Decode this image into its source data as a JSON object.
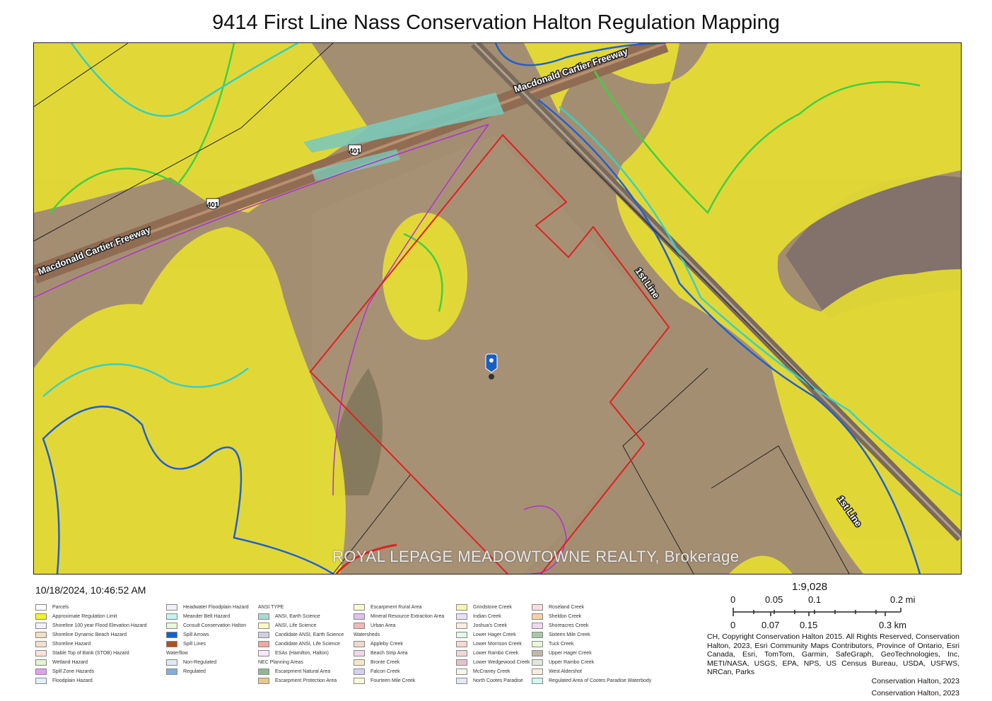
{
  "title": "9414 First Line Nass Conservation Halton Regulation Mapping",
  "timestamp": "10/18/2024, 10:46:52 AM",
  "map": {
    "road_labels": [
      "Macdonald Cartier Freeway",
      "Macdonald Cartier Freeway",
      "1st Line",
      "1st Line"
    ],
    "highway_shields": [
      "401",
      "401"
    ],
    "marker_icon": "map-pin-icon",
    "colors": {
      "regulation_limit": "#f0e82a",
      "parcel_boundary": "#e02020",
      "wetland": "#40d040",
      "floodplain": "#2060d0",
      "meander": "#30e0d0",
      "spill_zone": "#b030d0",
      "highway": "#8a6a50",
      "ansi_earth": "#7cc8b8"
    }
  },
  "legend": {
    "col1": [
      {
        "label": "Parcels",
        "color": "#ffffff"
      },
      {
        "label": "Approximate Regulation Limit",
        "color": "#f5f03a"
      },
      {
        "label": "Shoreline 100 year Flood Elevation Hazard",
        "color": "#f4f4ff"
      },
      {
        "label": "Shoreline Dynamic Beach Hazard",
        "color": "#f0e0c0"
      },
      {
        "label": "Shoreline Hazard",
        "color": "#f0e0d0"
      },
      {
        "label": "Stable Top of Bank (STOB) Hazard",
        "color": "#fde0e0"
      },
      {
        "label": "Wetland Hazard",
        "color": "#e0f5d0"
      },
      {
        "label": "Spill Zone Hazards",
        "color": "#e0a0f0"
      },
      {
        "label": "Floodplain Hazard",
        "color": "#e0f0ff"
      }
    ],
    "col2": [
      {
        "label": "Headwater Floodplain Hazard",
        "color": "#f0f0f8"
      },
      {
        "label": "Meander Belt Hazard",
        "color": "#c0f5f0"
      },
      {
        "label": "Consult Conservation Halton",
        "color": "#e8f8d8"
      },
      {
        "label": "Spill Arrows",
        "color": "#1060d0"
      },
      {
        "label": "Spill Lines",
        "color": "#b05020"
      }
    ],
    "waterflow_heading": "Waterflow",
    "waterflow": [
      {
        "label": "Non-Regulated",
        "color": "#e0e8f0"
      },
      {
        "label": "Regulated",
        "color": "#80b0e0"
      }
    ],
    "ansi_heading": "ANSI TYPE",
    "ansi": [
      {
        "label": "ANSI, Earth Science",
        "color": "#a8dcd0"
      },
      {
        "label": "ANSI, Life Science",
        "color": "#fafac0"
      },
      {
        "label": "Candidate ANSI, Earth Science",
        "color": "#d0d0e0"
      },
      {
        "label": "Candidate ANSI, Life Science",
        "color": "#f0a8a0"
      },
      {
        "label": "ESAs (Hamilton, Halton)",
        "color": "#f8e8f8"
      }
    ],
    "nec_heading": "NEC Planning Areas",
    "nec": [
      {
        "label": "Escarpment Natural Area",
        "color": "#90b890"
      },
      {
        "label": "Escarpment Protection Area",
        "color": "#e8c888"
      },
      {
        "label": "Escarpment Rural Area",
        "color": "#fafad0"
      },
      {
        "label": "Mineral Resource Extraction Area",
        "color": "#e0c0f0"
      },
      {
        "label": "Urban Area",
        "color": "#f0b8b8"
      }
    ],
    "watersheds_heading": "Watersheds",
    "watersheds1": [
      {
        "label": "Appleby Creek",
        "color": "#f0d8d0"
      },
      {
        "label": "Beach Strip Area",
        "color": "#f0d8e8"
      },
      {
        "label": "Bronte Creek",
        "color": "#f8e8c8"
      },
      {
        "label": "Falcon Creek",
        "color": "#d8d0f0"
      },
      {
        "label": "Fourteen Mile Creek",
        "color": "#fafad8"
      }
    ],
    "watersheds2": [
      {
        "label": "Grindstone Creek",
        "color": "#f8f8b0"
      },
      {
        "label": "Indian Creek",
        "color": "#e8e0f8"
      },
      {
        "label": "Joshua's Creek",
        "color": "#fbeee0"
      },
      {
        "label": "Lower Hager Creek",
        "color": "#e0f8e8"
      },
      {
        "label": "Lower Morrison Creek",
        "color": "#f8d8d0"
      },
      {
        "label": "Lower Rambo Creek",
        "color": "#f0d8d8"
      },
      {
        "label": "Lower Wedgewood Creek",
        "color": "#e8c0c8"
      },
      {
        "label": "McCraney Creek",
        "color": "#f4f8e8"
      },
      {
        "label": "North Cootes Paradise",
        "color": "#e4e8f4"
      }
    ],
    "watersheds3": [
      {
        "label": "Roseland Creek",
        "color": "#f8e0e0"
      },
      {
        "label": "Sheldon Creek",
        "color": "#f8d0a8"
      },
      {
        "label": "Shoreacres Creek",
        "color": "#f0d8f0"
      },
      {
        "label": "Sixteen Mile Creek",
        "color": "#a8c8a8"
      },
      {
        "label": "Tuck Creek",
        "color": "#e8f8d8"
      },
      {
        "label": "Upper Hager Creek",
        "color": "#c0b8a8"
      },
      {
        "label": "Upper Rambo Creek",
        "color": "#e0e8d8"
      },
      {
        "label": "West Aldershot",
        "color": "#f8ece0"
      },
      {
        "label": "Regulated Area of Cootes Paradise Waterbody",
        "color": "#d0f8f0"
      }
    ]
  },
  "scale": {
    "ratio": "1:9,028",
    "mi_ticks": [
      "0",
      "0.05",
      "0.1",
      "0.2 mi"
    ],
    "km_ticks": [
      "0",
      "0.07",
      "0.15",
      "0.3 km"
    ]
  },
  "credits": "CH, Copyright Conservation Halton 2015.  All Rights Reserved, Conservation Halton, 2023, Esri Community Maps Contributors, Province of Ontario, Esri Canada, Esri, TomTom, Garmin, SafeGraph, GeoTechnologies, Inc, METI/NASA, USGS, EPA, NPS, US Census Bureau, USDA, USFWS, NRCan, Parks",
  "credit_lines": [
    "Conservation Halton, 2023",
    "Conservation Halton, 2023"
  ],
  "watermark": "ROYAL LEPAGE MEADOWTOWNE REALTY, Brokerage"
}
